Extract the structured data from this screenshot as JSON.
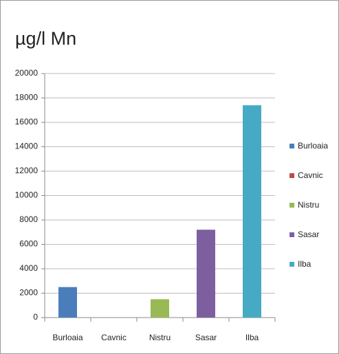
{
  "chart_data": {
    "type": "bar",
    "title": "µg/l Mn",
    "categories": [
      "Burloaia",
      "Cavnic",
      "Nistru",
      "Sasar",
      "Ilba"
    ],
    "values": [
      2500,
      0,
      1500,
      7200,
      17400
    ],
    "colors": [
      "#4a7ebb",
      "#be4b48",
      "#98b954",
      "#7d5fa0",
      "#46aac4"
    ],
    "ylim": [
      0,
      20000
    ],
    "yticks": [
      0,
      2000,
      4000,
      6000,
      8000,
      10000,
      12000,
      14000,
      16000,
      18000,
      20000
    ],
    "grid": true,
    "legend": "right"
  }
}
